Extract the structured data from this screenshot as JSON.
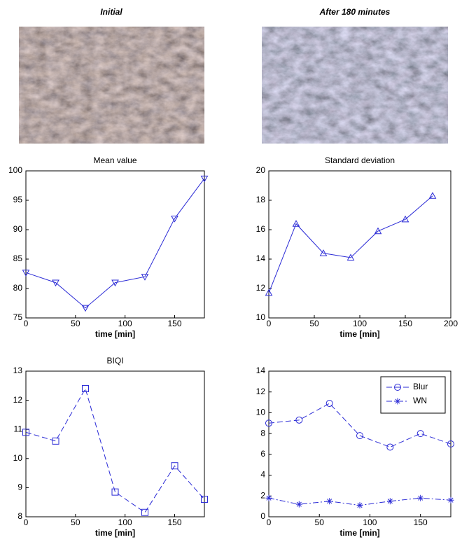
{
  "image_titles": [
    "Initial",
    "After 180 minutes"
  ],
  "chart_data": [
    {
      "type": "line",
      "title": "Mean value",
      "x_label": "time [min]",
      "x": [
        0,
        30,
        60,
        90,
        120,
        150,
        180
      ],
      "series": [
        {
          "color": "#2b2bd6",
          "marker": "triangle-down",
          "line_style": "solid",
          "values": [
            82.7,
            81.0,
            76.7,
            81.0,
            82.0,
            91.9,
            98.7
          ]
        }
      ],
      "xlim": [
        0,
        180
      ],
      "xticks": [
        0,
        50,
        100,
        150
      ],
      "ylim": [
        75,
        100
      ],
      "yticks": [
        75,
        80,
        85,
        90,
        95,
        100
      ]
    },
    {
      "type": "line",
      "title": "Standard deviation",
      "x_label": "time [min]",
      "x": [
        0,
        30,
        60,
        90,
        120,
        150,
        180
      ],
      "series": [
        {
          "color": "#2b2bd6",
          "marker": "triangle-up",
          "line_style": "solid",
          "values": [
            11.7,
            16.4,
            14.4,
            14.1,
            15.9,
            16.7,
            18.3
          ]
        }
      ],
      "xlim": [
        0,
        200
      ],
      "xticks": [
        0,
        50,
        100,
        150,
        200
      ],
      "ylim": [
        10,
        20
      ],
      "yticks": [
        10,
        12,
        14,
        16,
        18,
        20
      ]
    },
    {
      "type": "line",
      "title": "BIQI",
      "x_label": "time [min]",
      "x": [
        0,
        30,
        60,
        90,
        120,
        150,
        180
      ],
      "series": [
        {
          "color": "#2b2bd6",
          "marker": "square",
          "line_style": "dash",
          "values": [
            10.9,
            10.6,
            12.4,
            8.85,
            8.15,
            9.75,
            8.6
          ]
        }
      ],
      "xlim": [
        0,
        180
      ],
      "xticks": [
        0,
        50,
        100,
        150
      ],
      "ylim": [
        8,
        13
      ],
      "yticks": [
        8,
        9,
        10,
        11,
        12,
        13
      ]
    },
    {
      "type": "line",
      "x_label": "time [min]",
      "x": [
        0,
        30,
        60,
        90,
        120,
        150,
        180
      ],
      "series": [
        {
          "name": "Blur",
          "color": "#2b2bd6",
          "marker": "circle",
          "line_style": "dash",
          "values": [
            9.0,
            9.3,
            10.9,
            7.8,
            6.7,
            8.0,
            7.0
          ]
        },
        {
          "name": "WN",
          "color": "#2b2bd6",
          "marker": "star",
          "line_style": "dashdot",
          "values": [
            1.8,
            1.2,
            1.5,
            1.1,
            1.5,
            1.8,
            1.6
          ]
        }
      ],
      "legend": "upper-right",
      "xlim": [
        0,
        180
      ],
      "xticks": [
        0,
        50,
        100,
        150
      ],
      "ylim": [
        0,
        14
      ],
      "yticks": [
        0,
        2,
        4,
        6,
        8,
        10,
        12,
        14
      ]
    }
  ]
}
